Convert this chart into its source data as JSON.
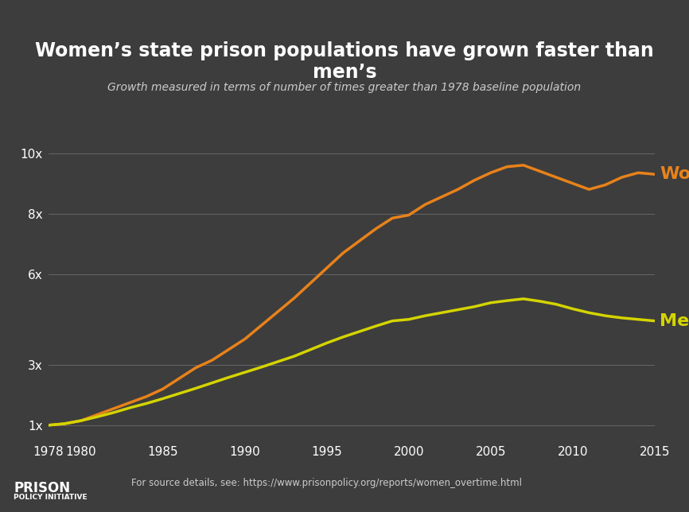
{
  "title": "Women’s state prison populations have grown faster than men’s",
  "subtitle": "Growth measured in terms of number of times greater than 1978 baseline population",
  "background_color": "#3d3d3d",
  "plot_bg_color": "#3d3d3d",
  "title_color": "#ffffff",
  "subtitle_color": "#cccccc",
  "grid_color": "#666666",
  "women_color": "#e8821a",
  "men_color": "#d4d400",
  "women_label": "Women",
  "men_label": "Men",
  "source_text": "For source details, see: https://www.prisonpolicy.org/reports/women_overtime.html",
  "footer_label": "PRISON\nPOLICY INITIATIVE",
  "xlim": [
    1978,
    2015
  ],
  "ylim": [
    0.5,
    11
  ],
  "yticks": [
    1,
    3,
    6,
    8,
    10
  ],
  "ytick_labels": [
    "1x",
    "3x",
    "6x",
    "8x",
    "10x"
  ],
  "xticks": [
    1978,
    1980,
    1985,
    1990,
    1995,
    2000,
    2005,
    2010,
    2015
  ],
  "women_years": [
    1978,
    1979,
    1980,
    1981,
    1982,
    1983,
    1984,
    1985,
    1986,
    1987,
    1988,
    1989,
    1990,
    1991,
    1992,
    1993,
    1994,
    1995,
    1996,
    1997,
    1998,
    1999,
    2000,
    2001,
    2002,
    2003,
    2004,
    2005,
    2006,
    2007,
    2008,
    2009,
    2010,
    2011,
    2012,
    2013,
    2014,
    2015
  ],
  "women_values": [
    1.0,
    1.05,
    1.15,
    1.35,
    1.55,
    1.75,
    1.95,
    2.2,
    2.55,
    2.9,
    3.15,
    3.5,
    3.85,
    4.3,
    4.75,
    5.2,
    5.7,
    6.2,
    6.7,
    7.1,
    7.5,
    7.85,
    7.95,
    8.3,
    8.55,
    8.8,
    9.1,
    9.35,
    9.55,
    9.6,
    9.4,
    9.2,
    9.0,
    8.8,
    8.95,
    9.2,
    9.35,
    9.3
  ],
  "men_years": [
    1978,
    1979,
    1980,
    1981,
    1982,
    1983,
    1984,
    1985,
    1986,
    1987,
    1988,
    1989,
    1990,
    1991,
    1992,
    1993,
    1994,
    1995,
    1996,
    1997,
    1998,
    1999,
    2000,
    2001,
    2002,
    2003,
    2004,
    2005,
    2006,
    2007,
    2008,
    2009,
    2010,
    2011,
    2012,
    2013,
    2014,
    2015
  ],
  "men_values": [
    1.0,
    1.05,
    1.15,
    1.28,
    1.42,
    1.58,
    1.72,
    1.88,
    2.05,
    2.22,
    2.4,
    2.58,
    2.75,
    2.92,
    3.1,
    3.28,
    3.5,
    3.72,
    3.92,
    4.1,
    4.28,
    4.45,
    4.5,
    4.62,
    4.72,
    4.82,
    4.92,
    5.05,
    5.12,
    5.18,
    5.1,
    5.0,
    4.85,
    4.72,
    4.62,
    4.55,
    4.5,
    4.45
  ]
}
